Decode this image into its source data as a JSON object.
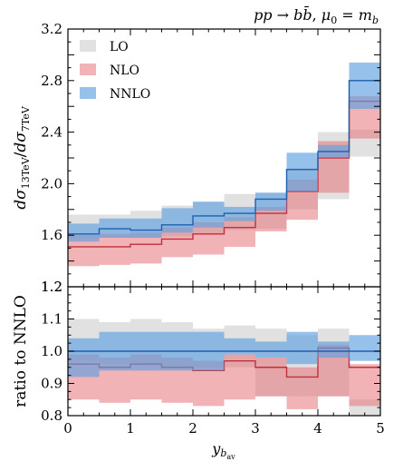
{
  "chart_data": [
    {
      "type": "area",
      "panel": "main",
      "title": "pp → b b̄, μ₀ = m_b",
      "ylabel": "dσ_13TeV / dσ_7TeV",
      "xlabel": "",
      "xlim": [
        0,
        5
      ],
      "ylim": [
        1.2,
        3.2
      ],
      "x_edges": [
        0,
        0.5,
        1,
        1.5,
        2,
        2.5,
        3,
        3.5,
        4,
        4.5,
        5
      ],
      "x_ticks": [
        "0",
        "1",
        "2",
        "3",
        "4",
        "5"
      ],
      "y_ticks": [
        "1.2",
        "1.6",
        "2.0",
        "2.4",
        "2.8",
        "3.2"
      ],
      "grid": false,
      "legend_position": "top-left",
      "series": [
        {
          "name": "LO",
          "color": "#c8c8c8",
          "low": [
            1.57,
            1.58,
            1.58,
            1.59,
            1.61,
            1.64,
            1.65,
            1.8,
            1.88,
            2.21
          ],
          "high": [
            1.76,
            1.76,
            1.79,
            1.83,
            1.86,
            1.92,
            1.93,
            2.12,
            2.4,
            2.42
          ],
          "central": [
            1.665,
            1.67,
            1.685,
            1.71,
            1.735,
            1.78,
            1.79,
            1.96,
            2.14,
            2.315
          ]
        },
        {
          "name": "NLO",
          "color": "#e8747c",
          "line_color": "#c0303c",
          "low": [
            1.36,
            1.37,
            1.38,
            1.43,
            1.45,
            1.51,
            1.63,
            1.72,
            1.93,
            2.35
          ],
          "high": [
            1.6,
            1.61,
            1.62,
            1.66,
            1.7,
            1.74,
            1.82,
            2.03,
            2.33,
            2.68
          ],
          "central": [
            1.51,
            1.51,
            1.53,
            1.57,
            1.61,
            1.66,
            1.77,
            1.94,
            2.2,
            2.64
          ]
        },
        {
          "name": "NNLO",
          "color": "#5d9fe0",
          "line_color": "#1f5fb0",
          "low": [
            1.55,
            1.58,
            1.58,
            1.62,
            1.66,
            1.71,
            1.79,
            1.94,
            2.2,
            2.58
          ],
          "high": [
            1.69,
            1.73,
            1.73,
            1.81,
            1.86,
            1.82,
            1.93,
            2.24,
            2.3,
            2.94
          ],
          "central": [
            1.61,
            1.65,
            1.64,
            1.68,
            1.75,
            1.77,
            1.88,
            2.11,
            2.25,
            2.8
          ]
        }
      ]
    },
    {
      "type": "area",
      "panel": "ratio",
      "ylabel": "ratio to NNLO",
      "xlabel": "y_b_av",
      "xlim": [
        0,
        5
      ],
      "ylim": [
        0.8,
        1.2
      ],
      "x_edges": [
        0,
        0.5,
        1,
        1.5,
        2,
        2.5,
        3,
        3.5,
        4,
        4.5,
        5
      ],
      "x_ticks": [
        "0",
        "1",
        "2",
        "3",
        "4",
        "5"
      ],
      "y_ticks": [
        "0.8",
        "0.9",
        "1.0",
        "1.1",
        "1.2"
      ],
      "grid": false,
      "series": [
        {
          "name": "LO",
          "color": "#c8c8c8",
          "low": [
            0.97,
            0.96,
            0.96,
            0.95,
            0.95,
            0.95,
            0.86,
            0.86,
            0.86,
            0.79
          ],
          "high": [
            1.1,
            1.09,
            1.1,
            1.09,
            1.07,
            1.08,
            1.07,
            1.05,
            1.07,
            0.85
          ],
          "central": [
            1.035,
            1.02,
            1.03,
            1.02,
            1.01,
            1.015,
            0.965,
            0.955,
            0.965,
            0.82
          ]
        },
        {
          "name": "NLO",
          "color": "#e8747c",
          "line_color": "#c0303c",
          "low": [
            0.85,
            0.84,
            0.85,
            0.84,
            0.83,
            0.85,
            0.86,
            0.82,
            0.86,
            0.83
          ],
          "high": [
            0.99,
            0.98,
            0.99,
            0.98,
            0.97,
            0.99,
            0.98,
            0.95,
            1.02,
            0.96
          ],
          "central": [
            0.96,
            0.95,
            0.96,
            0.95,
            0.94,
            0.97,
            0.95,
            0.92,
            1.01,
            0.95
          ]
        },
        {
          "name": "NNLO",
          "color": "#5d9fe0",
          "line_color": "#1f5fb0",
          "low": [
            0.92,
            0.94,
            0.94,
            0.94,
            0.94,
            0.99,
            0.98,
            0.96,
            0.98,
            0.97
          ],
          "high": [
            1.04,
            1.06,
            1.06,
            1.06,
            1.06,
            1.04,
            1.03,
            1.06,
            1.03,
            1.05
          ],
          "central": [
            1.0,
            1.0,
            1.0,
            1.0,
            1.0,
            1.0,
            1.0,
            1.0,
            1.0,
            1.0
          ]
        }
      ]
    }
  ]
}
